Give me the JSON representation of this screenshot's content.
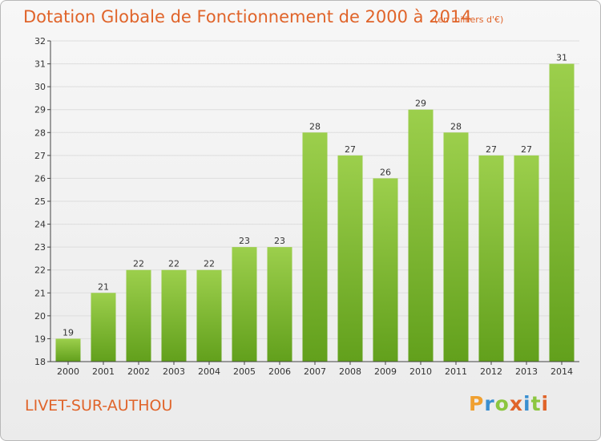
{
  "title": "Dotation Globale de Fonctionnement de 2000 à 2014",
  "subtitle": "(en milliers d'€)",
  "commune": "LIVET-SUR-AUTHOU",
  "logo": {
    "text": "Proxiti",
    "letters": [
      {
        "ch": "P",
        "color": "#f0a030"
      },
      {
        "ch": "r",
        "color": "#3a8fd0"
      },
      {
        "ch": "o",
        "color": "#8cc63f"
      },
      {
        "ch": "x",
        "color": "#e0642a"
      },
      {
        "ch": "i",
        "color": "#3a8fd0"
      },
      {
        "ch": "t",
        "color": "#8cc63f"
      },
      {
        "ch": "i",
        "color": "#e0642a"
      }
    ]
  },
  "colors": {
    "title": "#e0642a",
    "bar_top": "#9ccf4c",
    "bar_bottom": "#62a01c",
    "axis": "#444444",
    "grid": "#dddddd"
  },
  "chart_data": {
    "type": "bar",
    "categories": [
      "2000",
      "2001",
      "2002",
      "2003",
      "2004",
      "2005",
      "2006",
      "2007",
      "2008",
      "2009",
      "2010",
      "2011",
      "2012",
      "2013",
      "2014"
    ],
    "values": [
      19,
      21,
      22,
      22,
      22,
      23,
      23,
      28,
      27,
      26,
      29,
      28,
      27,
      27,
      31
    ],
    "ylim": [
      18,
      32
    ],
    "yticks": [
      18,
      19,
      20,
      21,
      22,
      23,
      24,
      25,
      26,
      27,
      28,
      29,
      30,
      31,
      32
    ],
    "grid": true,
    "xlabel": "",
    "ylabel": ""
  }
}
